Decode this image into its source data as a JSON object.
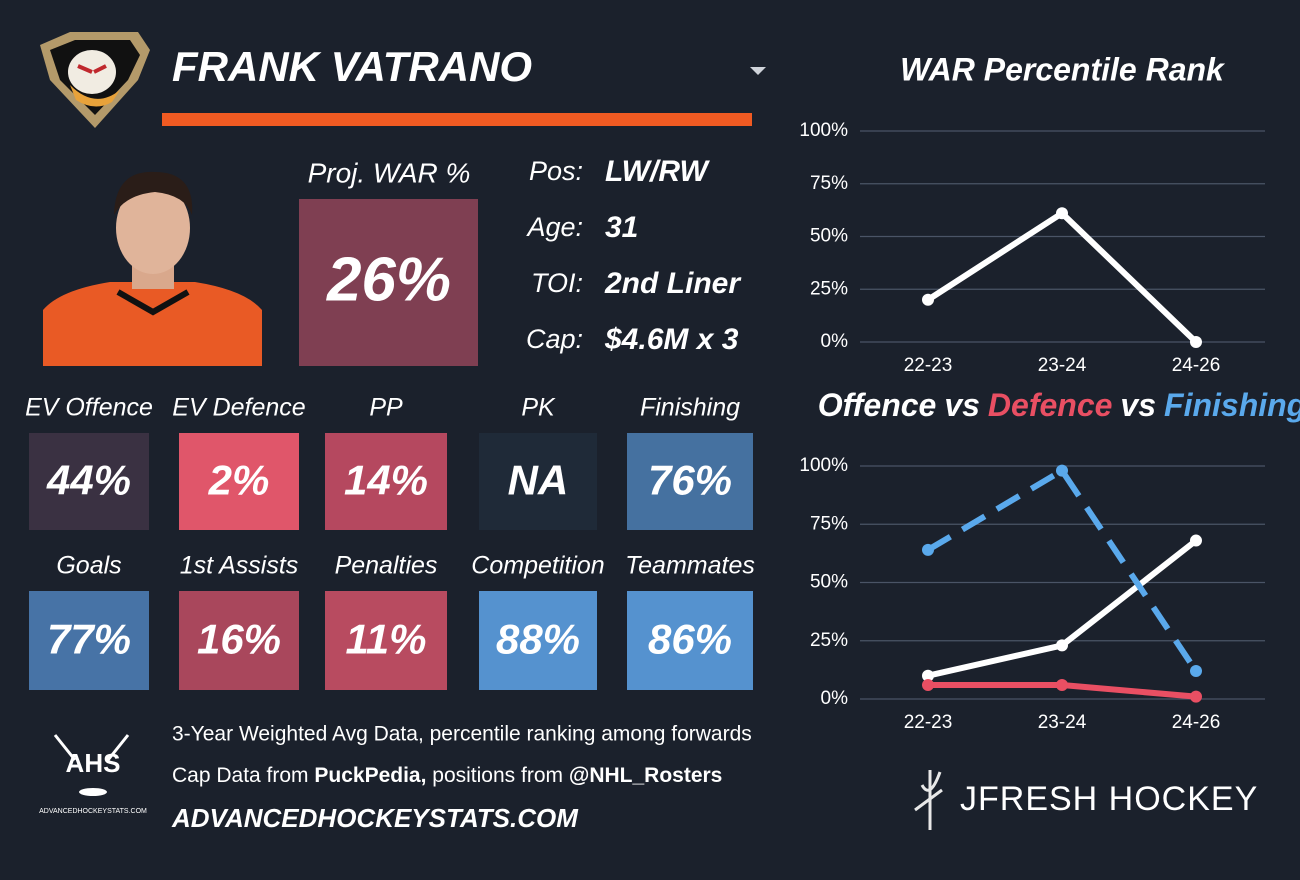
{
  "player": {
    "name": "FRANK VATRANO",
    "proj_label": "Proj. WAR %",
    "proj_value": "26%",
    "info": [
      {
        "label": "Pos:",
        "value": "LW/RW"
      },
      {
        "label": "Age:",
        "value": "31"
      },
      {
        "label": "TOI:",
        "value": "2nd Liner"
      },
      {
        "label": "Cap:",
        "value": "$4.6M x 3"
      }
    ]
  },
  "tiles": [
    {
      "label": "EV Offence",
      "value": "44%",
      "color": "#3a3142"
    },
    {
      "label": "EV Defence",
      "value": "2%",
      "color": "#e0566a"
    },
    {
      "label": "PP",
      "value": "14%",
      "color": "#b5485f"
    },
    {
      "label": "PK",
      "value": "NA",
      "color": "#1f2a38"
    },
    {
      "label": "Finishing",
      "value": "76%",
      "color": "#4571a0"
    },
    {
      "label": "Goals",
      "value": "77%",
      "color": "#4773a6"
    },
    {
      "label": "1st Assists",
      "value": "16%",
      "color": "#a9475c"
    },
    {
      "label": "Penalties",
      "value": "11%",
      "color": "#b84b60"
    },
    {
      "label": "Competition",
      "value": "88%",
      "color": "#5592cf"
    },
    {
      "label": "Teammates",
      "value": "86%",
      "color": "#5592cf"
    }
  ],
  "footer": {
    "line1": "3-Year Weighted Avg Data, percentile ranking among forwards",
    "line2": [
      "Cap Data from ",
      "PuckPedia,",
      " positions from ",
      "@NHL_Rosters"
    ],
    "site": "ADVANCEDHOCKEYSTATS.COM",
    "ahs_logo": "AHS",
    "ahs_small": "ADVANCEDHOCKEYSTATS.COM",
    "brand": "JFRESH HOCKEY"
  },
  "chart_data": [
    {
      "type": "line",
      "title": "WAR Percentile Rank",
      "categories": [
        "22-23",
        "23-24",
        "24-26"
      ],
      "series": [
        {
          "name": "WAR",
          "color": "#ffffff",
          "values": [
            20,
            61,
            0
          ]
        }
      ],
      "ylim": [
        0,
        100
      ],
      "yticks": [
        {
          "value": 0,
          "label": "0%"
        },
        {
          "value": 25,
          "label": "25%"
        },
        {
          "value": 50,
          "label": "50%"
        },
        {
          "value": 75,
          "label": "75%"
        },
        {
          "value": 100,
          "label": "100%"
        }
      ],
      "grid": true
    },
    {
      "type": "line",
      "title_joiner": "vs",
      "categories": [
        "22-23",
        "23-24",
        "24-26"
      ],
      "series": [
        {
          "name": "Offence",
          "color": "#ffffff",
          "values": [
            10,
            23,
            68
          ]
        },
        {
          "name": "Defence",
          "color": "#e94f63",
          "values": [
            6,
            6,
            1
          ]
        },
        {
          "name": "Finishing",
          "color": "#5aa9ec",
          "values": [
            64,
            98,
            12
          ],
          "dash": true
        }
      ],
      "ylim": [
        0,
        100
      ],
      "yticks": [
        {
          "value": 0,
          "label": "0%"
        },
        {
          "value": 25,
          "label": "25%"
        },
        {
          "value": 50,
          "label": "50%"
        },
        {
          "value": 75,
          "label": "75%"
        },
        {
          "value": 100,
          "label": "100%"
        }
      ],
      "grid": true
    }
  ]
}
